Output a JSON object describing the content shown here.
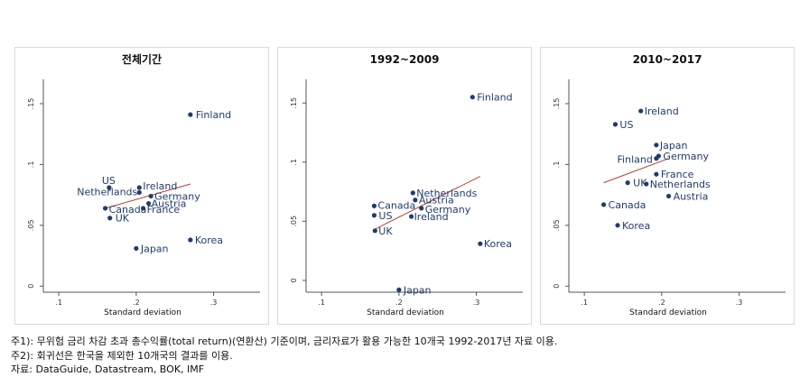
{
  "chart_data": [
    {
      "type": "scatter",
      "title": "전체기간",
      "xlabel": "Standard deviation",
      "ylabel": "",
      "xlim": [
        0.08,
        0.36
      ],
      "ylim": [
        -0.005,
        0.17
      ],
      "xticks": [
        0.1,
        0.2,
        0.3
      ],
      "xtick_labels": [
        ".1",
        ".2",
        ".3"
      ],
      "yticks": [
        0,
        0.05,
        0.1,
        0.15
      ],
      "ytick_labels": [
        "0",
        ".05",
        ".1",
        ".15"
      ],
      "points": [
        {
          "label": "Finland",
          "x": 0.27,
          "y": 0.141
        },
        {
          "label": "US",
          "x": 0.165,
          "y": 0.081
        },
        {
          "label": "Ireland",
          "x": 0.204,
          "y": 0.081
        },
        {
          "label": "Netherlands",
          "x": 0.204,
          "y": 0.077
        },
        {
          "label": "Germany",
          "x": 0.219,
          "y": 0.074
        },
        {
          "label": "Austria",
          "x": 0.216,
          "y": 0.068
        },
        {
          "label": "France",
          "x": 0.209,
          "y": 0.064
        },
        {
          "label": "Canada",
          "x": 0.16,
          "y": 0.064
        },
        {
          "label": "UK",
          "x": 0.166,
          "y": 0.056
        },
        {
          "label": "Korea",
          "x": 0.27,
          "y": 0.038
        },
        {
          "label": "Japan",
          "x": 0.2,
          "y": 0.031
        }
      ],
      "fit_line": [
        [
          0.16,
          0.064
        ],
        [
          0.27,
          0.084
        ]
      ]
    },
    {
      "type": "scatter",
      "title": "1992~2009",
      "xlabel": "Standard deviation",
      "ylabel": "",
      "xlim": [
        0.08,
        0.36
      ],
      "ylim": [
        -0.01,
        0.17
      ],
      "xticks": [
        0.1,
        0.2,
        0.3
      ],
      "xtick_labels": [
        ".1",
        ".2",
        ".3"
      ],
      "yticks": [
        0,
        0.05,
        0.1,
        0.15
      ],
      "ytick_labels": [
        "0",
        ".05",
        ".1",
        ".15"
      ],
      "points": [
        {
          "label": "Finland",
          "x": 0.295,
          "y": 0.155
        },
        {
          "label": "Netherlands",
          "x": 0.218,
          "y": 0.074
        },
        {
          "label": "Austria",
          "x": 0.221,
          "y": 0.068
        },
        {
          "label": "Canada",
          "x": 0.168,
          "y": 0.063
        },
        {
          "label": "Germany",
          "x": 0.229,
          "y": 0.061
        },
        {
          "label": "US",
          "x": 0.168,
          "y": 0.055
        },
        {
          "label": "Ireland",
          "x": 0.216,
          "y": 0.054
        },
        {
          "label": "UK",
          "x": 0.169,
          "y": 0.042
        },
        {
          "label": "Korea",
          "x": 0.305,
          "y": 0.031
        },
        {
          "label": "Japan",
          "x": 0.2,
          "y": -0.008
        }
      ],
      "fit_line": [
        [
          0.168,
          0.043
        ],
        [
          0.305,
          0.088
        ]
      ]
    },
    {
      "type": "scatter",
      "title": "2010~2017",
      "xlabel": "Standard deviation",
      "ylabel": "",
      "xlim": [
        0.08,
        0.36
      ],
      "ylim": [
        -0.005,
        0.17
      ],
      "xticks": [
        0.1,
        0.2,
        0.3
      ],
      "xtick_labels": [
        ".1",
        ".2",
        ".3"
      ],
      "yticks": [
        0,
        0.05,
        0.1,
        0.15
      ],
      "ytick_labels": [
        "0",
        ".05",
        ".1",
        ".15"
      ],
      "points": [
        {
          "label": "Ireland",
          "x": 0.173,
          "y": 0.144
        },
        {
          "label": "US",
          "x": 0.14,
          "y": 0.133
        },
        {
          "label": "Japan",
          "x": 0.193,
          "y": 0.116
        },
        {
          "label": "Germany",
          "x": 0.196,
          "y": 0.107
        },
        {
          "label": "Finland",
          "x": 0.193,
          "y": 0.105
        },
        {
          "label": "France",
          "x": 0.193,
          "y": 0.092
        },
        {
          "label": "UK",
          "x": 0.156,
          "y": 0.085
        },
        {
          "label": "Netherlands",
          "x": 0.18,
          "y": 0.084
        },
        {
          "label": "Austria",
          "x": 0.209,
          "y": 0.074
        },
        {
          "label": "Canada",
          "x": 0.125,
          "y": 0.067
        },
        {
          "label": "Korea",
          "x": 0.143,
          "y": 0.05
        }
      ],
      "fit_line": [
        [
          0.125,
          0.085
        ],
        [
          0.209,
          0.105
        ]
      ]
    }
  ],
  "notes": {
    "note1": "주1): 무위험 금리 차감 초과 총수익률(total return)(연환산) 기준이며, 금리자료가 활용 가능한 10개국 1992-2017년 자료 이용.",
    "note2": "주2): 회귀선은 한국을 제외한 10개국의 결과를 이용.",
    "source": "자료: DataGuide, Datastream, BOK, IMF"
  },
  "colors": {
    "point": "#1f3c6e",
    "fit_line": "#c0392b",
    "axis": "#555555",
    "panel_border": "#d9d9d9"
  }
}
